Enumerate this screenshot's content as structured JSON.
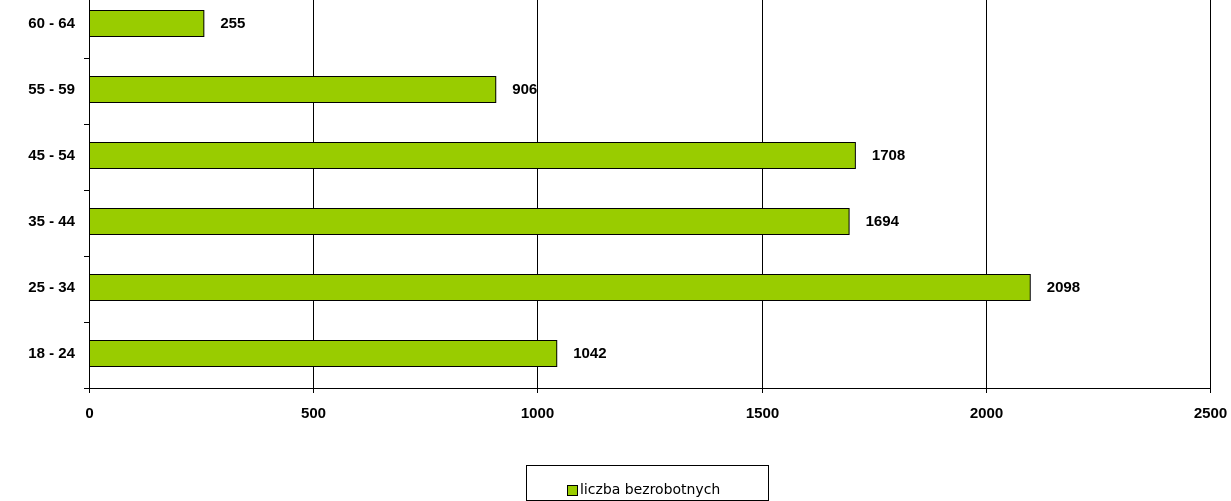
{
  "chart_data": {
    "type": "bar",
    "orientation": "horizontal",
    "categories": [
      "18 - 24",
      "25 - 34",
      "35 - 44",
      "45 - 54",
      "55 - 59",
      "60 - 64"
    ],
    "series": [
      {
        "name": "liczba bezrobotnych",
        "values": [
          1042,
          2098,
          1694,
          1708,
          906,
          255
        ]
      }
    ],
    "xlim": [
      0,
      2500
    ],
    "x_ticks": [
      0,
      500,
      1000,
      1500,
      2000,
      2500
    ],
    "grid": "vertical",
    "bar_color": "#99cc00",
    "legend_position": "bottom"
  }
}
